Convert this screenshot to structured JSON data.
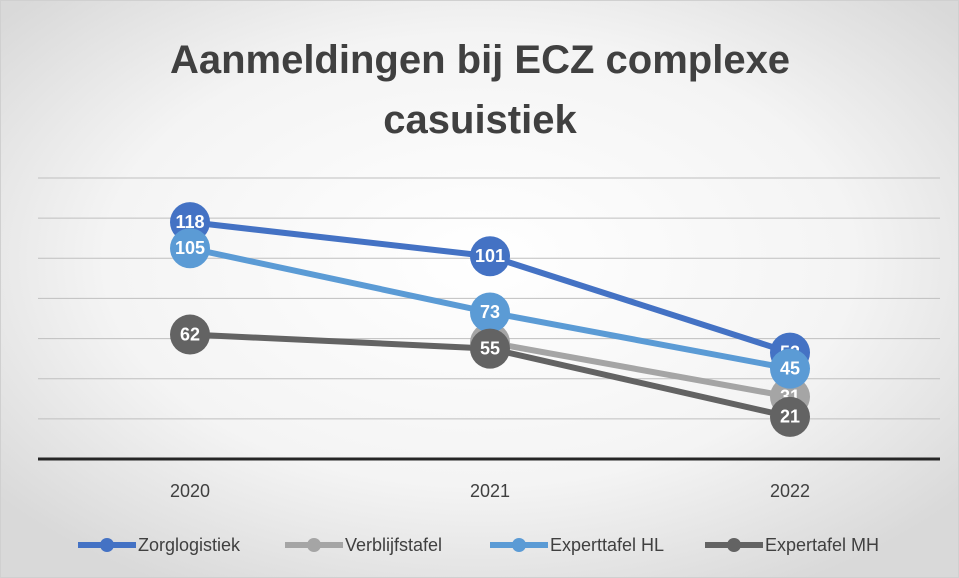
{
  "chart_data": {
    "type": "line",
    "title": "Aanmeldingen bij ECZ complexe casuistiek",
    "categories": [
      "2020",
      "2021",
      "2022"
    ],
    "series": [
      {
        "name": "Zorglogistiek",
        "color": "#4472c4",
        "values": [
          118,
          101,
          53
        ]
      },
      {
        "name": "Verblijfstafel",
        "color": "#a5a5a5",
        "values": [
          null,
          58,
          31
        ]
      },
      {
        "name": "Experttafel HL",
        "color": "#5b9bd5",
        "values": [
          105,
          73,
          45
        ]
      },
      {
        "name": "Expertafel MH",
        "color": "#636363",
        "values": [
          62,
          55,
          21
        ]
      }
    ],
    "ylim": [
      0,
      140
    ],
    "yticks": [
      0,
      20,
      40,
      60,
      80,
      100,
      120,
      140
    ],
    "grid": true,
    "legend": "bottom"
  }
}
